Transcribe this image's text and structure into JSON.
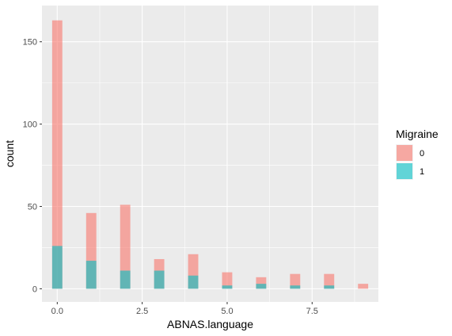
{
  "chart_data": {
    "type": "bar",
    "title": "",
    "xlabel": "ABNAS.language",
    "ylabel": "count",
    "xlim": [
      -0.45,
      9.45
    ],
    "ylim": [
      -8,
      172
    ],
    "x_ticks": [
      0,
      2.5,
      5,
      7.5
    ],
    "x_tick_labels": [
      "0.0",
      "2.5",
      "5.0",
      "7.5"
    ],
    "y_ticks": [
      0,
      50,
      100,
      150
    ],
    "y_tick_labels": [
      "0",
      "50",
      "100",
      "150"
    ],
    "bin_width": 0.3,
    "grid": true,
    "legend": {
      "title": "Migraine",
      "position": "right"
    },
    "series": [
      {
        "name": "0",
        "color": "#F8766D",
        "opacity": 0.6,
        "x": [
          0,
          1,
          2,
          3,
          4,
          5,
          6,
          7,
          8,
          9
        ],
        "values": [
          163,
          46,
          51,
          18,
          21,
          10,
          7,
          9,
          9,
          3
        ]
      },
      {
        "name": "1",
        "color": "#00BFC4",
        "opacity": 0.6,
        "x": [
          0,
          1,
          2,
          3,
          4,
          5,
          6,
          7,
          8,
          9
        ],
        "values": [
          26,
          17,
          11,
          11,
          8,
          2,
          3,
          2,
          2,
          0
        ]
      }
    ],
    "panel_background": "#EBEBEB",
    "gridline_color": "#FFFFFF"
  }
}
